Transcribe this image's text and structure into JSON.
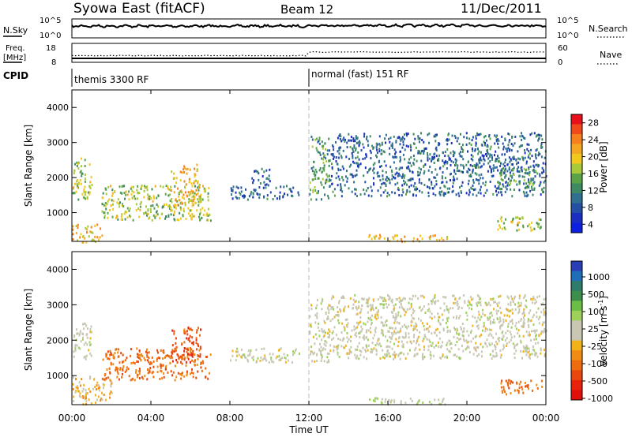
{
  "header": {
    "station": "Syowa East (fitACF)",
    "beam": "Beam 12",
    "date": "11/Dec/2011"
  },
  "noise_panel": {
    "left_label": "N.Sky",
    "right_label": "N.Search",
    "ticks_left": [
      "10^5",
      "10^0"
    ],
    "ticks_right": [
      "10^5",
      "10^0"
    ]
  },
  "freq_panel": {
    "label_line1": "Freq.",
    "label_line2": "[MHz]",
    "ticks_left": [
      "18",
      "8"
    ],
    "right_label": "Nave",
    "ticks_right": [
      "60",
      "0"
    ]
  },
  "cpid_panel": {
    "label": "CPID",
    "modes": [
      {
        "name": "themis 3300 RF",
        "start_hour": 0
      },
      {
        "name": "normal (fast) 151 RF",
        "start_hour": 12
      }
    ]
  },
  "power_panel": {
    "ylabel": "Slant Range [km]",
    "y_ticks": [
      "4000",
      "3000",
      "2000",
      "1000"
    ],
    "colorbar_label": "Power [dB]",
    "colorbar_ticks": [
      "28",
      "24",
      "20",
      "16",
      "12",
      "8",
      "4"
    ],
    "colorbar_colors": [
      "#e8111a",
      "#f04a1c",
      "#f5811e",
      "#f5a623",
      "#f2c81f",
      "#a8c93a",
      "#5aa447",
      "#3f8a62",
      "#2f6f8f",
      "#244fa5",
      "#1a2fc0",
      "#0d1fe0"
    ]
  },
  "velocity_panel": {
    "ylabel": "Slant Range [km]",
    "y_ticks": [
      "4000",
      "3000",
      "2000",
      "1000"
    ],
    "colorbar_label": "Velocity [m s",
    "colorbar_sup": "-1",
    "colorbar_label_end": "]",
    "colorbar_ticks": [
      "1000",
      "500",
      "100",
      "25",
      "-25",
      "-100",
      "-500",
      "-1000"
    ],
    "colorbar_colors": [
      "#2a3fb5",
      "#1f6fb8",
      "#2e7d6a",
      "#3c8f4a",
      "#6cbd45",
      "#9dd15a",
      "#c9c7b4",
      "#c9c7b4",
      "#f2b21a",
      "#f08b14",
      "#ee6b10",
      "#e8470d",
      "#e8220b",
      "#e00f0a"
    ]
  },
  "x_axis": {
    "ticks": [
      "00:00",
      "04:00",
      "08:00",
      "12:00",
      "16:00",
      "20:00",
      "00:00"
    ],
    "label": "Time UT"
  },
  "chart_data": [
    {
      "type": "heatmap",
      "title": "Power",
      "x_range_hours": [
        0,
        24
      ],
      "ylim": [
        180,
        4500
      ],
      "ylabel": "Slant Range [km]",
      "xlabel": "Time UT",
      "colorbar": {
        "label": "Power [dB]",
        "range": [
          0,
          30
        ],
        "ticks": [
          4,
          8,
          12,
          16,
          20,
          24,
          28
        ]
      },
      "regions": [
        {
          "t": [
            0.0,
            1.0
          ],
          "r": [
            1400,
            2600
          ],
          "value": 16
        },
        {
          "t": [
            0.0,
            1.5
          ],
          "r": [
            180,
            700
          ],
          "value": 20
        },
        {
          "t": [
            1.5,
            7.0
          ],
          "r": [
            800,
            1800
          ],
          "value": 16
        },
        {
          "t": [
            5.0,
            6.5
          ],
          "r": [
            1200,
            2400
          ],
          "value": 20
        },
        {
          "t": [
            8.0,
            11.5
          ],
          "r": [
            1400,
            1800
          ],
          "value": 8
        },
        {
          "t": [
            9.0,
            10.0
          ],
          "r": [
            1800,
            2300
          ],
          "value": 8
        },
        {
          "t": [
            12.0,
            13.0
          ],
          "r": [
            1400,
            3200
          ],
          "value": 12
        },
        {
          "t": [
            15.0,
            19.0
          ],
          "r": [
            200,
            400
          ],
          "value": 20
        },
        {
          "t": [
            13.0,
            24.0
          ],
          "r": [
            1500,
            3300
          ],
          "value": 8
        },
        {
          "t": [
            21.5,
            23.8
          ],
          "r": [
            500,
            900
          ],
          "value": 16
        },
        {
          "t": [
            21.5,
            23.5
          ],
          "r": [
            1700,
            2300
          ],
          "value": 12
        }
      ]
    },
    {
      "type": "heatmap",
      "title": "Velocity",
      "x_range_hours": [
        0,
        24
      ],
      "ylim": [
        180,
        4500
      ],
      "ylabel": "Slant Range [km]",
      "xlabel": "Time UT",
      "colorbar": {
        "label": "Velocity [m s-1]",
        "range": [
          -1000,
          1000
        ],
        "ticks": [
          1000,
          500,
          100,
          25,
          -25,
          -100,
          -500,
          -1000
        ]
      },
      "regions": [
        {
          "t": [
            0.0,
            1.0
          ],
          "r": [
            1500,
            2500
          ],
          "value": 0
        },
        {
          "t": [
            0.0,
            2.0
          ],
          "r": [
            200,
            1000
          ],
          "value": -200
        },
        {
          "t": [
            1.5,
            7.0
          ],
          "r": [
            900,
            1800
          ],
          "value": -500
        },
        {
          "t": [
            5.0,
            6.5
          ],
          "r": [
            1400,
            2400
          ],
          "value": -600
        },
        {
          "t": [
            8.0,
            11.5
          ],
          "r": [
            1400,
            1800
          ],
          "value": 0
        },
        {
          "t": [
            12.0,
            13.0
          ],
          "r": [
            1400,
            3200
          ],
          "value": 0
        },
        {
          "t": [
            15.0,
            19.0
          ],
          "r": [
            200,
            400
          ],
          "value": 100
        },
        {
          "t": [
            13.0,
            24.0
          ],
          "r": [
            1500,
            3300
          ],
          "value": 0
        },
        {
          "t": [
            21.5,
            23.8
          ],
          "r": [
            500,
            900
          ],
          "value": -500
        }
      ]
    }
  ]
}
